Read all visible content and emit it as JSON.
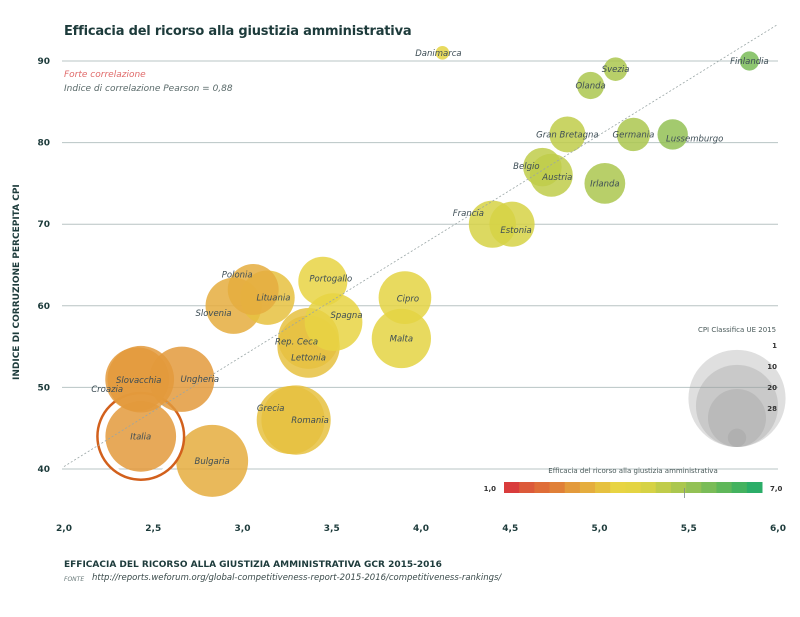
{
  "header": {
    "title": "Efficacia del ricorso alla giustizia amministrativa",
    "correlation_label": "Forte correlazione",
    "correlation_index": "Indice di correlazione Pearson = 0,88"
  },
  "footer": {
    "x_title": "EFFICACIA DEL RICORSO ALLA GIUSTIZIA AMMINISTRATIVA GCR 2015-2016",
    "source_label": "Fonte",
    "source_url": "http://reports.weforum.org/global-competitiveness-report-2015-2016/competitiveness-rankings/"
  },
  "colors": {
    "grid": "#b8c4c4",
    "trend": "#9aa6a6",
    "highlight_ring": "#d2601c",
    "text_dark": "#1d3b3b",
    "scale": [
      "#d93c3c",
      "#dc5a3a",
      "#df6d38",
      "#e08038",
      "#e39a3c",
      "#e5ad3e",
      "#e6c140",
      "#e8d443",
      "#e4d443",
      "#d6d245",
      "#c0cc4a",
      "#abc74f",
      "#93c155",
      "#7abc58",
      "#5fb75a",
      "#44b25f",
      "#2bad68"
    ]
  },
  "chart_data": {
    "type": "scatter",
    "title": "Efficacia del ricorso alla giustizia amministrativa",
    "xlabel": "EFFICACIA DEL RICORSO ALLA GIUSTIZIA AMMINISTRATIVA GCR 2015-2016",
    "ylabel": "INDICE DI CORRUZIONE PERCEPITA CPI",
    "xlim": [
      2.0,
      6.0
    ],
    "ylim": [
      40,
      90
    ],
    "x_ticks": [
      "2,0",
      "2,5",
      "3,0",
      "3,5",
      "4,0",
      "4,5",
      "5,0",
      "5,5",
      "6,0"
    ],
    "x_tick_values": [
      2.0,
      2.5,
      3.0,
      3.5,
      4.0,
      4.5,
      5.0,
      5.5,
      6.0
    ],
    "y_ticks": [
      "40",
      "50",
      "60",
      "70",
      "80",
      "90"
    ],
    "y_tick_values": [
      40,
      50,
      60,
      70,
      80,
      90
    ],
    "grid": "horizontal",
    "trendline": {
      "x": [
        2.0,
        6.0
      ],
      "y": [
        40.3,
        94.5
      ],
      "style": "dashed"
    },
    "size_legend": {
      "title": "CPI Classifica UE 2015",
      "values": [
        1,
        10,
        20,
        28
      ],
      "labels": [
        "1",
        "10",
        "20",
        "28"
      ],
      "placement": "bottom-right"
    },
    "color_legend": {
      "title": "Efficacia del ricorso alla giustizia amministrativa",
      "min_label": "1,0",
      "max_label": "7,0",
      "min": 1.0,
      "max": 7.0,
      "marker_value": 5.2,
      "placement": "bottom-right"
    },
    "points": [
      {
        "name": "Danimarca",
        "x": 4.12,
        "y": 91,
        "rank": 1
      },
      {
        "name": "Finlandia",
        "x": 5.84,
        "y": 90,
        "rank": 2
      },
      {
        "name": "Svezia",
        "x": 5.09,
        "y": 89,
        "rank": 3
      },
      {
        "name": "Olanda",
        "x": 4.95,
        "y": 87,
        "rank": 4
      },
      {
        "name": "Lussemburgo",
        "x": 5.41,
        "y": 81,
        "rank": 5
      },
      {
        "name": "Germania",
        "x": 5.19,
        "y": 81,
        "rank": 6
      },
      {
        "name": "Gran Bretagna",
        "x": 4.82,
        "y": 81,
        "rank": 7
      },
      {
        "name": "Belgio",
        "x": 4.68,
        "y": 77,
        "rank": 8
      },
      {
        "name": "Irlanda",
        "x": 5.03,
        "y": 75,
        "rank": 9
      },
      {
        "name": "Austria",
        "x": 4.73,
        "y": 76,
        "rank": 10
      },
      {
        "name": "Estonia",
        "x": 4.51,
        "y": 70,
        "rank": 11
      },
      {
        "name": "Francia",
        "x": 4.4,
        "y": 70,
        "rank": 12
      },
      {
        "name": "Portogallo",
        "x": 3.45,
        "y": 63,
        "rank": 13
      },
      {
        "name": "Polonia",
        "x": 3.06,
        "y": 62,
        "rank": 14
      },
      {
        "name": "Cipro",
        "x": 3.91,
        "y": 61,
        "rank": 15
      },
      {
        "name": "Lituania",
        "x": 3.14,
        "y": 61,
        "rank": 16
      },
      {
        "name": "Slovenia",
        "x": 2.95,
        "y": 60,
        "rank": 17
      },
      {
        "name": "Spagna",
        "x": 3.51,
        "y": 58,
        "rank": 18
      },
      {
        "name": "Malta",
        "x": 3.89,
        "y": 56,
        "rank": 19
      },
      {
        "name": "Rep. Ceca",
        "x": 3.37,
        "y": 56,
        "rank": 20
      },
      {
        "name": "Lettonia",
        "x": 3.37,
        "y": 55,
        "rank": 21
      },
      {
        "name": "Croazia",
        "x": 2.41,
        "y": 51,
        "rank": 22
      },
      {
        "name": "Ungheria",
        "x": 2.66,
        "y": 51,
        "rank": 23
      },
      {
        "name": "Slovacchia",
        "x": 2.43,
        "y": 51,
        "rank": 24
      },
      {
        "name": "Grecia",
        "x": 3.27,
        "y": 46,
        "rank": 25
      },
      {
        "name": "Romania",
        "x": 3.3,
        "y": 46,
        "rank": 26
      },
      {
        "name": "Italia",
        "x": 2.43,
        "y": 44,
        "rank": 27,
        "highlight": true
      },
      {
        "name": "Bulgaria",
        "x": 2.83,
        "y": 41,
        "rank": 28
      }
    ]
  }
}
